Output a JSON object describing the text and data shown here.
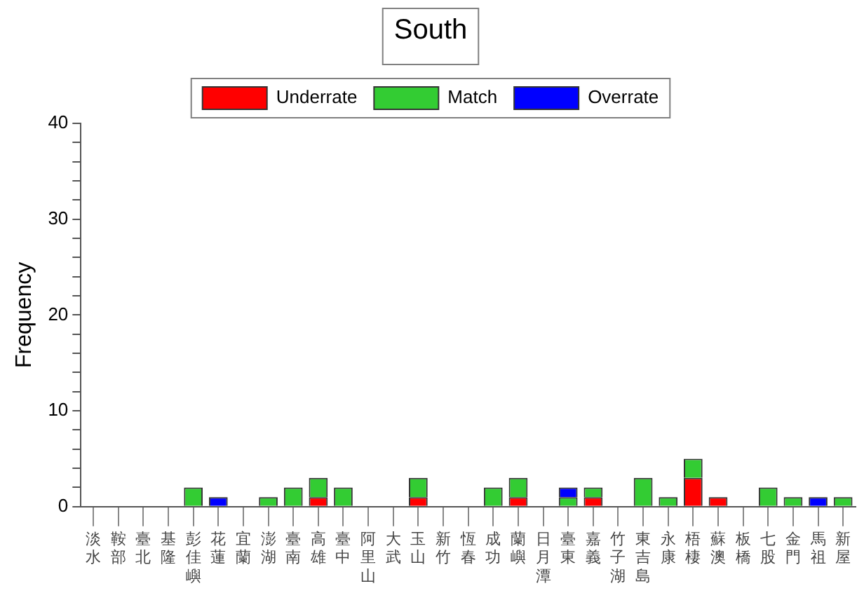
{
  "chart_data": {
    "type": "bar",
    "title": "South",
    "ylabel": "Frequency",
    "stacked": true,
    "legend": "top",
    "grid": false,
    "categories": [
      "淡水",
      "鞍部",
      "臺北",
      "基隆",
      "彭佳嶼",
      "花蓮",
      "宜蘭",
      "澎湖",
      "臺南",
      "高雄",
      "臺中",
      "阿里山",
      "大武",
      "玉山",
      "新竹",
      "恆春",
      "成功",
      "蘭嶼",
      "日月潭",
      "臺東",
      "嘉義",
      "竹子湖",
      "東吉島",
      "永康",
      "梧棲",
      "蘇澳",
      "板橋",
      "七股",
      "金門",
      "馬祖",
      "新屋"
    ],
    "ylim": [
      0,
      40
    ],
    "yticks": [
      0,
      {
        "value": 2,
        "label": null
      },
      {
        "value": 4,
        "label": null
      },
      {
        "value": 6,
        "label": null
      },
      {
        "value": 8,
        "label": null
      },
      10,
      {
        "value": 12,
        "label": null
      },
      {
        "value": 14,
        "label": null
      },
      {
        "value": 16,
        "label": null
      },
      {
        "value": 18,
        "label": null
      },
      20,
      {
        "value": 22,
        "label": null
      },
      {
        "value": 24,
        "label": null
      },
      {
        "value": 26,
        "label": null
      },
      {
        "value": 28,
        "label": null
      },
      30,
      {
        "value": 32,
        "label": null
      },
      {
        "value": 34,
        "label": null
      },
      {
        "value": 36,
        "label": null
      },
      {
        "value": 38,
        "label": null
      },
      40
    ],
    "series": [
      {
        "name": "Underrate",
        "color": "#ff0000",
        "values": [
          0,
          0,
          0,
          0,
          0,
          0,
          0,
          0,
          0,
          1,
          0,
          0,
          0,
          1,
          0,
          0,
          0,
          1,
          0,
          0,
          1,
          0,
          0,
          0,
          3,
          1,
          0,
          0,
          0,
          0,
          0
        ]
      },
      {
        "name": "Match",
        "color": "#33cc33",
        "values": [
          0,
          0,
          0,
          0,
          2,
          0,
          0,
          1,
          2,
          2,
          2,
          0,
          0,
          2,
          0,
          0,
          2,
          2,
          0,
          1,
          1,
          0,
          3,
          1,
          2,
          0,
          0,
          2,
          1,
          0,
          1
        ]
      },
      {
        "name": "Overrate",
        "color": "#0000ff",
        "values": [
          0,
          0,
          0,
          0,
          0,
          1,
          0,
          0,
          0,
          0,
          0,
          0,
          0,
          0,
          0,
          0,
          0,
          0,
          0,
          1,
          0,
          0,
          0,
          0,
          0,
          0,
          0,
          0,
          0,
          1,
          0
        ]
      }
    ]
  }
}
